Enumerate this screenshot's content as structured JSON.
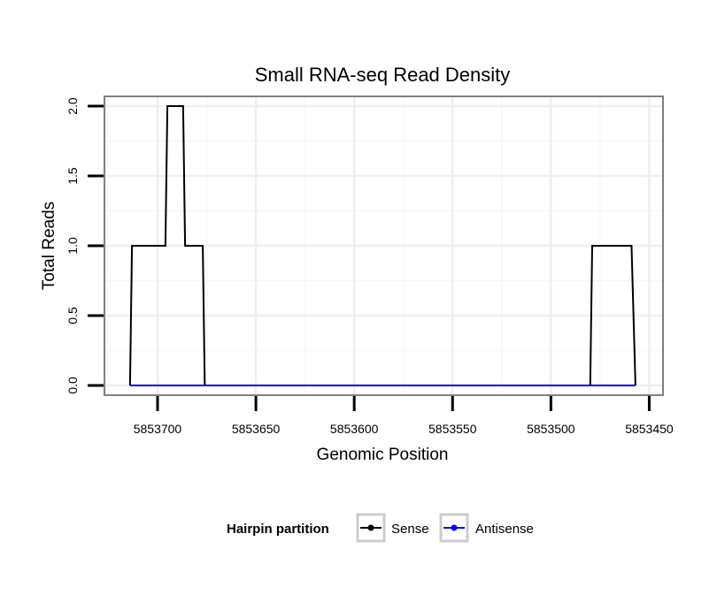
{
  "chart_data": {
    "type": "line",
    "title": "Small RNA-seq Read Density",
    "xlabel": "Genomic Position",
    "ylabel": "Total Reads",
    "xlim": [
      5853727,
      5853443
    ],
    "ylim": [
      -0.07,
      2.07
    ],
    "x_ticks": [
      5853700,
      5853650,
      5853600,
      5853550,
      5853500,
      5853450
    ],
    "x_tick_labels": [
      "5853700",
      "5853650",
      "5853600",
      "5853550",
      "5853500",
      "5853450"
    ],
    "y_ticks": [
      0.0,
      0.5,
      1.0,
      1.5,
      2.0
    ],
    "y_tick_labels": [
      "0.0",
      "0.5",
      "1.0",
      "1.5",
      "2.0"
    ],
    "grid": true,
    "legend": {
      "title": "Hairpin partition",
      "position": "bottom"
    },
    "series": [
      {
        "name": "Sense",
        "color": "#000000",
        "x": [
          5853714,
          5853713,
          5853696,
          5853695,
          5853687,
          5853686,
          5853677,
          5853676,
          5853480,
          5853479,
          5853459,
          5853457
        ],
        "y": [
          0,
          1,
          1,
          2,
          2,
          1,
          1,
          0,
          0,
          1,
          1,
          0
        ]
      },
      {
        "name": "Antisense",
        "color": "#0000ff",
        "x": [
          5853714,
          5853676,
          5853480,
          5853457
        ],
        "y": [
          0,
          0,
          0,
          0
        ]
      }
    ]
  }
}
